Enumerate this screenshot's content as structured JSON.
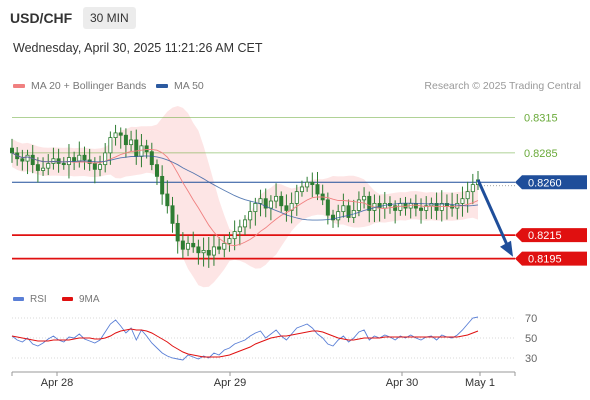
{
  "header": {
    "symbol": "USD/CHF",
    "timeframe": "30 MIN",
    "datetime": "Wednesday, April 30, 2025 11:21:26 AM CET"
  },
  "legend": {
    "ma20": "MA 20 + Bollinger Bands",
    "ma50": "MA 50",
    "credit": "Research © 2025 Trading Central"
  },
  "rsi_legend": {
    "rsi": "RSI",
    "ma9": "9MA"
  },
  "colors": {
    "ma20": "#f08080",
    "ma50": "#2c5aa0",
    "band_fill": "#fde0e0",
    "candle": "#2e7d32",
    "resistance": "#6aaa3a",
    "pivot": "#1f4e9a",
    "support": "#e01010",
    "rsi": "#5a7fd6",
    "rsi_ma": "#e01010"
  },
  "chart_data": [
    {
      "type": "candlestick",
      "title": "USD/CHF 30 MIN",
      "x_ticks": [
        "Apr 28",
        "Apr 29",
        "Apr 30",
        "May 1"
      ],
      "ylim": [
        0.817,
        0.833
      ],
      "price_levels": [
        {
          "label": "0.8315",
          "value": 0.8315,
          "kind": "resistance"
        },
        {
          "label": "0.8285",
          "value": 0.8285,
          "kind": "resistance"
        },
        {
          "label": "0.8260",
          "value": 0.826,
          "kind": "pivot"
        },
        {
          "label": "0.8215",
          "value": 0.8215,
          "kind": "support"
        },
        {
          "label": "0.8195",
          "value": 0.8195,
          "kind": "support"
        }
      ],
      "series": [
        {
          "name": "MA 20 + Bollinger Bands",
          "kind": "ma20_bollinger"
        },
        {
          "name": "MA 50",
          "kind": "ma50"
        }
      ],
      "close_path": [
        0.8285,
        0.828,
        0.8278,
        0.8283,
        0.8275,
        0.827,
        0.8272,
        0.8276,
        0.828,
        0.8276,
        0.8275,
        0.8281,
        0.8278,
        0.8283,
        0.8279,
        0.8276,
        0.8271,
        0.8275,
        0.8285,
        0.8298,
        0.8302,
        0.83,
        0.8292,
        0.8296,
        0.8282,
        0.8291,
        0.8286,
        0.8275,
        0.8265,
        0.825,
        0.824,
        0.8225,
        0.821,
        0.8203,
        0.8208,
        0.8205,
        0.82,
        0.8202,
        0.8198,
        0.8205,
        0.8203,
        0.8208,
        0.8212,
        0.8218,
        0.8222,
        0.8228,
        0.8235,
        0.8242,
        0.8246,
        0.8238,
        0.8244,
        0.8248,
        0.824,
        0.8236,
        0.8242,
        0.8252,
        0.8256,
        0.826,
        0.8258,
        0.825,
        0.8245,
        0.8232,
        0.8228,
        0.8235,
        0.824,
        0.823,
        0.8236,
        0.8245,
        0.8248,
        0.8236,
        0.8242,
        0.8238,
        0.8242,
        0.824,
        0.8236,
        0.8242,
        0.8238,
        0.8242,
        0.8238,
        0.8236,
        0.824,
        0.8242,
        0.8236,
        0.8242,
        0.824,
        0.8238,
        0.8242,
        0.8246,
        0.8252,
        0.8258,
        0.8262
      ],
      "forecast": {
        "from": 0.8262,
        "to": 0.82,
        "direction": "down"
      }
    },
    {
      "type": "line",
      "title": "RSI",
      "yticks": [
        70,
        50,
        30
      ],
      "ylim": [
        20,
        80
      ],
      "series": [
        {
          "name": "RSI",
          "values": [
            52,
            48,
            46,
            50,
            44,
            42,
            45,
            49,
            52,
            48,
            46,
            51,
            50,
            54,
            49,
            47,
            45,
            48,
            56,
            64,
            68,
            62,
            55,
            60,
            48,
            58,
            52,
            45,
            40,
            35,
            32,
            30,
            29,
            28,
            33,
            31,
            29,
            32,
            30,
            35,
            33,
            38,
            40,
            44,
            46,
            48,
            52,
            55,
            57,
            50,
            54,
            58,
            52,
            48,
            54,
            60,
            62,
            64,
            60,
            54,
            50,
            44,
            42,
            48,
            52,
            46,
            50,
            56,
            58,
            48,
            52,
            50,
            53,
            51,
            48,
            52,
            50,
            53,
            50,
            48,
            51,
            52,
            48,
            53,
            51,
            50,
            53,
            58,
            64,
            70,
            71
          ]
        },
        {
          "name": "9MA",
          "values": [
            52,
            51,
            50,
            49,
            48,
            47,
            47,
            47,
            48,
            48,
            48,
            48,
            49,
            50,
            50,
            50,
            49,
            49,
            50,
            52,
            55,
            57,
            58,
            59,
            58,
            58,
            57,
            55,
            52,
            49,
            46,
            42,
            39,
            36,
            34,
            33,
            32,
            31,
            31,
            31,
            31,
            32,
            33,
            35,
            37,
            39,
            41,
            44,
            46,
            48,
            50,
            51,
            52,
            52,
            53,
            54,
            55,
            56,
            57,
            57,
            56,
            54,
            52,
            50,
            49,
            48,
            48,
            49,
            50,
            50,
            50,
            50,
            51,
            51,
            51,
            51,
            51,
            51,
            51,
            51,
            51,
            51,
            51,
            51,
            51,
            51,
            51,
            52,
            53,
            55,
            57
          ]
        }
      ]
    }
  ]
}
